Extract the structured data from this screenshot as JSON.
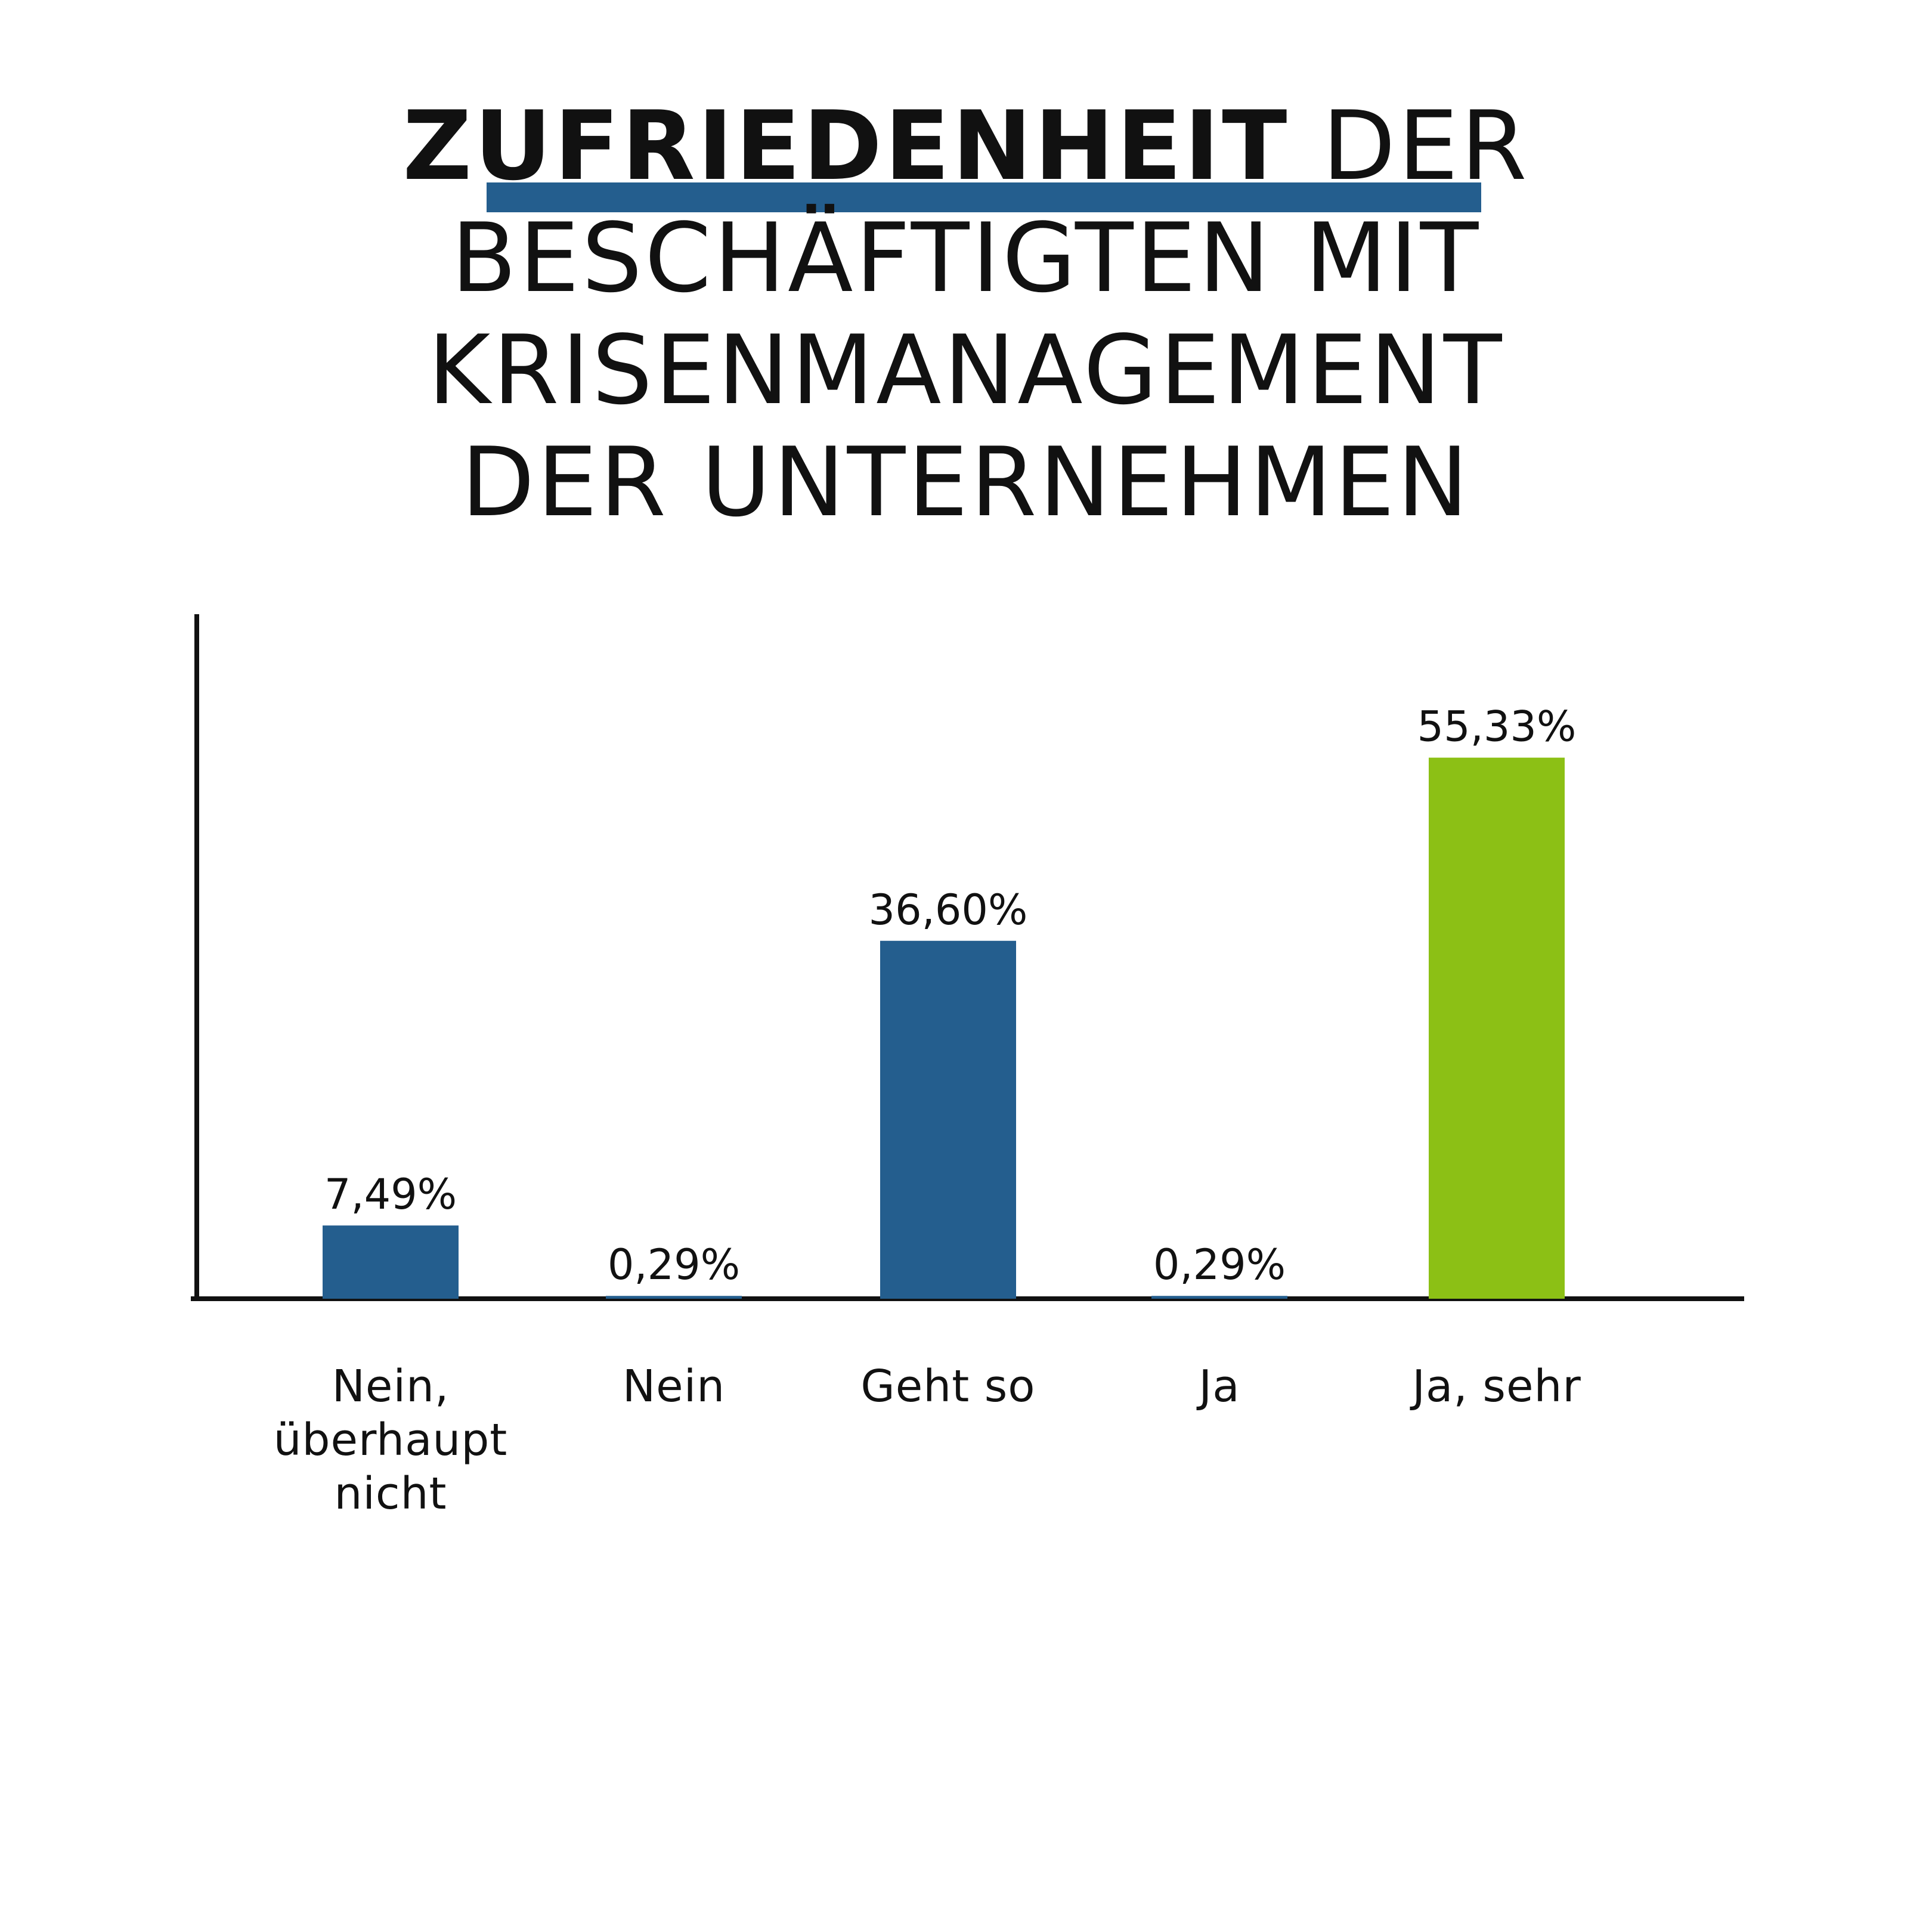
{
  "colors": {
    "primary": "#245e8e",
    "accent": "#8cc015",
    "text": "#111111",
    "axis": "#111111"
  },
  "title": {
    "bold_part": "ZUFRIEDENHEIT",
    "line1_rest": " DER",
    "line2": "BESCHÄFTIGTEN MIT",
    "line3": "KRISENMANAGEMENT",
    "line4": "DER UNTERNEHMEN"
  },
  "chart_data": {
    "type": "bar",
    "title": "ZUFRIEDENHEIT DER BESCHÄFTIGTEN MIT KRISENMANAGEMENT DER UNTERNEHMEN",
    "categories": [
      "Nein, überhaupt nicht",
      "Nein",
      "Geht so",
      "Ja",
      "Ja, sehr"
    ],
    "values": [
      7.49,
      0.29,
      36.6,
      0.29,
      55.33
    ],
    "value_labels": [
      "7,49%",
      "0,29%",
      "36,60%",
      "0,29%",
      "55,33%"
    ],
    "highlight_index": 4,
    "unit": "%",
    "xlabel": "",
    "ylabel": "",
    "ylim": [
      0,
      70
    ],
    "grid": false,
    "legend": "none"
  }
}
